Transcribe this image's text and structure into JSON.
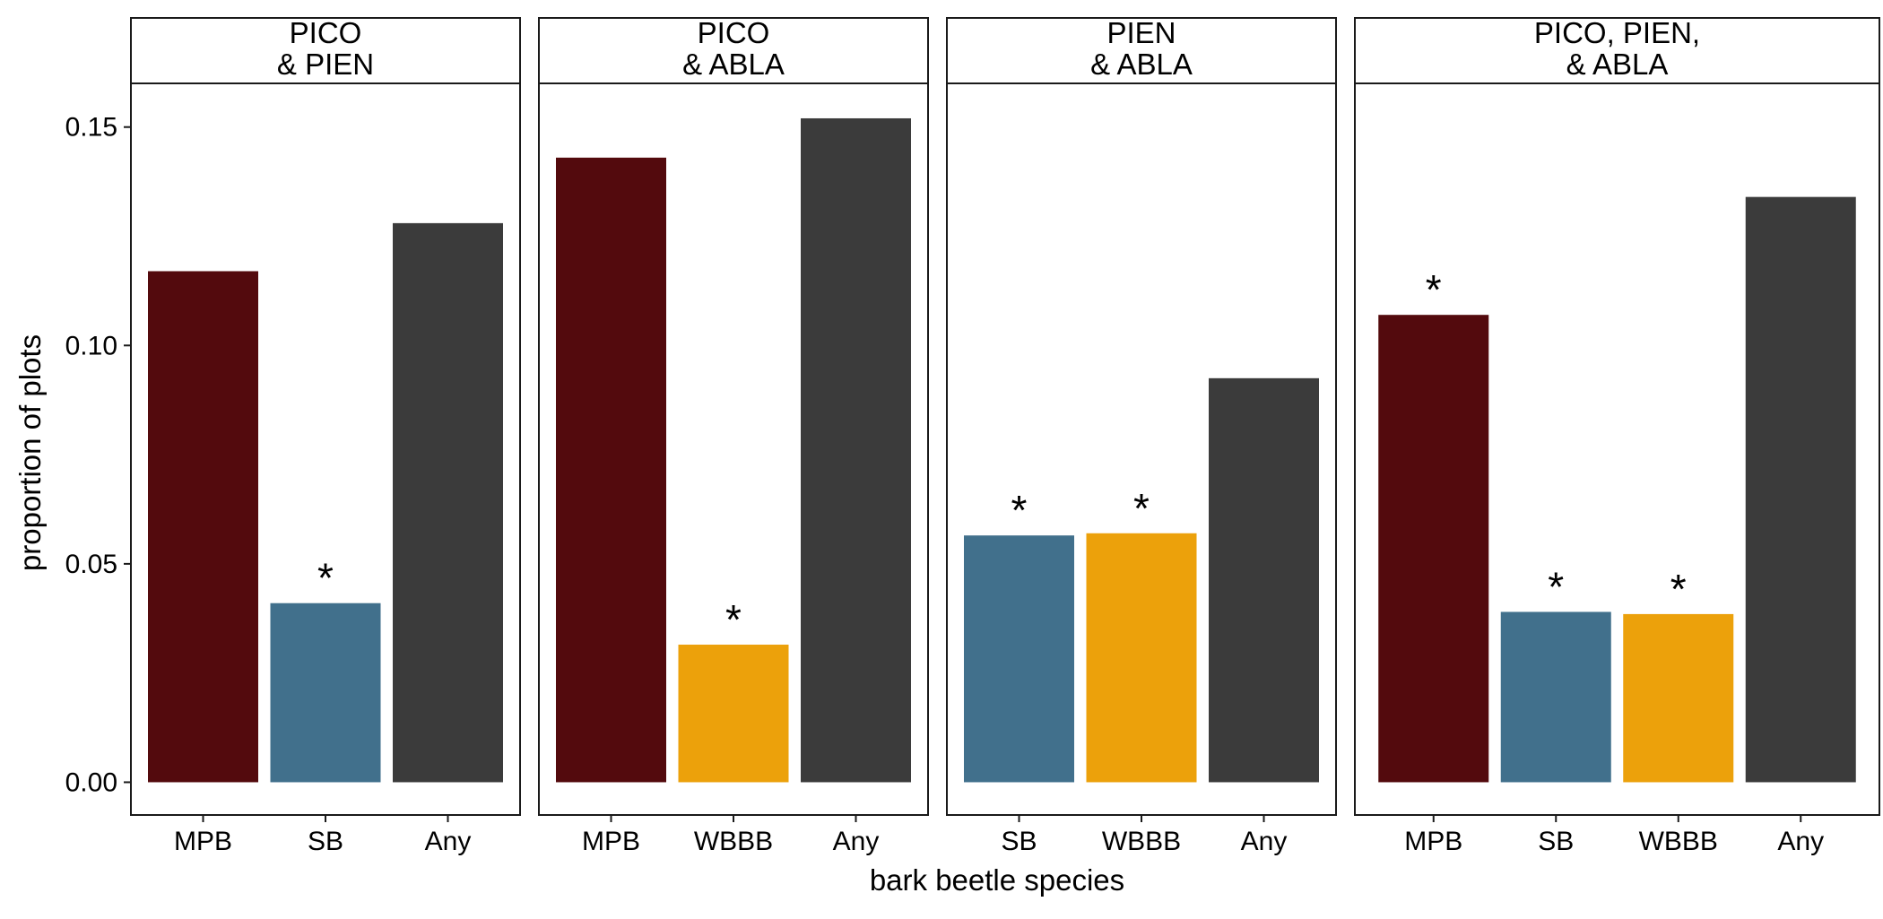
{
  "colors": {
    "MPB": "#530a0d",
    "SB": "#41708c",
    "WBBB": "#eca10b",
    "Any": "#3b3b3b",
    "panel_border": "#1a1a1a",
    "background": "#ffffff"
  },
  "chart_data": {
    "type": "bar",
    "facet": "columns",
    "xlabel": "bark beetle species",
    "ylabel": "proportion of plots",
    "ylim": [
      -0.0075,
      0.16
    ],
    "yticks": [
      0.0,
      0.05,
      0.1,
      0.15
    ],
    "ytick_labels": [
      "0.00",
      "0.05",
      "0.10",
      "0.15"
    ],
    "grid": false,
    "legend": "none",
    "significance_marker": "*",
    "panels": [
      {
        "strip_lines": [
          "PICO",
          "& PIEN"
        ],
        "categories": [
          "MPB",
          "SB",
          "Any"
        ],
        "values": [
          0.117,
          0.041,
          0.128
        ],
        "significant": [
          false,
          true,
          false
        ]
      },
      {
        "strip_lines": [
          "PICO",
          "& ABLA"
        ],
        "categories": [
          "MPB",
          "WBBB",
          "Any"
        ],
        "values": [
          0.143,
          0.0315,
          0.152
        ],
        "significant": [
          false,
          true,
          false
        ]
      },
      {
        "strip_lines": [
          "PIEN",
          "& ABLA"
        ],
        "categories": [
          "SB",
          "WBBB",
          "Any"
        ],
        "values": [
          0.0565,
          0.057,
          0.0925
        ],
        "significant": [
          true,
          true,
          false
        ]
      },
      {
        "strip_lines": [
          "PICO, PIEN,",
          "& ABLA"
        ],
        "categories": [
          "MPB",
          "SB",
          "WBBB",
          "Any"
        ],
        "values": [
          0.107,
          0.039,
          0.0385,
          0.134
        ],
        "significant": [
          true,
          true,
          true,
          false
        ]
      }
    ]
  }
}
